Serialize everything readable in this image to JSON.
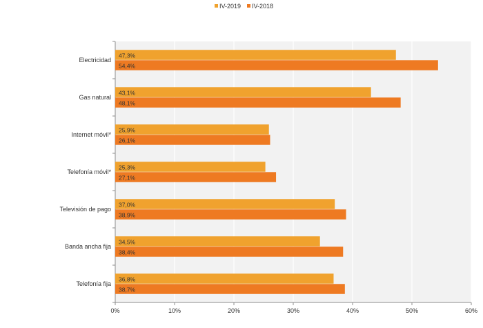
{
  "chart_data": {
    "type": "bar",
    "orientation": "horizontal",
    "categories": [
      "Electricidad",
      "Gas natural",
      "Internet móvil*",
      "Telefonía móvil*",
      "Televisión de pago",
      "Banda ancha fija",
      "Telefonía fija"
    ],
    "series": [
      {
        "name": "IV-2019",
        "color": "#f0a22e",
        "values": [
          47.3,
          43.1,
          25.9,
          25.3,
          37.0,
          34.5,
          36.8
        ],
        "labels": [
          "47,3%",
          "43,1%",
          "25,9%",
          "25,3%",
          "37,0%",
          "34,5%",
          "36,8%"
        ]
      },
      {
        "name": "IV-2018",
        "color": "#ee7a22",
        "values": [
          54.4,
          48.1,
          26.1,
          27.1,
          38.9,
          38.4,
          38.7
        ],
        "labels": [
          "54,4%",
          "48,1%",
          "26,1%",
          "27,1%",
          "38,9%",
          "38,4%",
          "38,7%"
        ]
      }
    ],
    "xlim": [
      0,
      60
    ],
    "xticks": [
      "0%",
      "10%",
      "20%",
      "30%",
      "40%",
      "50%",
      "60%"
    ],
    "grid": true,
    "legend": "top-center",
    "title": "",
    "xlabel": "",
    "ylabel": ""
  }
}
